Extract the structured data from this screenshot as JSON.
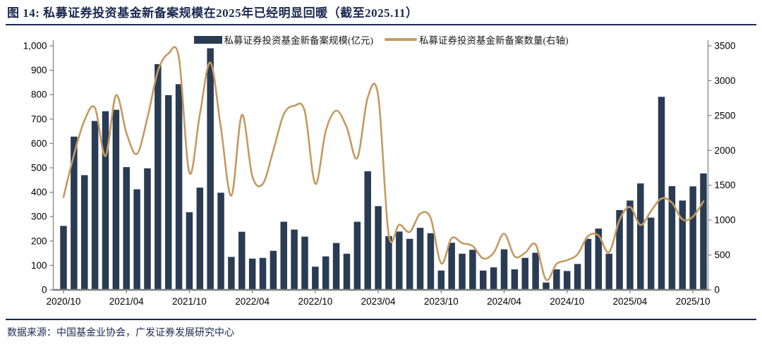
{
  "title": "图  14:  私募证券投资基金新备案规模在2025年已经明显回暖（截至2025.11）",
  "source_note": "数据来源：中国基金业协会，广发证券发展研究中心",
  "colors": {
    "bar": "#2a3b54",
    "line": "#c49a61",
    "title_navy": "#1b2a50",
    "axis_gray": "#7f7f7f",
    "tick_text": "#000000"
  },
  "chart_data": {
    "type": "bar",
    "title": "私募证券投资基金新备案规模与数量",
    "categories": [
      "2020/10",
      "2020/11",
      "2020/12",
      "2021/01",
      "2021/02",
      "2021/03",
      "2021/04",
      "2021/05",
      "2021/06",
      "2021/07",
      "2021/08",
      "2021/09",
      "2021/10",
      "2021/11",
      "2021/12",
      "2022/01",
      "2022/02",
      "2022/03",
      "2022/04",
      "2022/05",
      "2022/06",
      "2022/07",
      "2022/08",
      "2022/09",
      "2022/10",
      "2022/11",
      "2022/12",
      "2023/01",
      "2023/02",
      "2023/03",
      "2023/04",
      "2023/05",
      "2023/06",
      "2023/07",
      "2023/08",
      "2023/09",
      "2023/10",
      "2023/11",
      "2023/12",
      "2024/01",
      "2024/02",
      "2024/03",
      "2024/04",
      "2024/05",
      "2024/06",
      "2024/07",
      "2024/08",
      "2024/09",
      "2024/10",
      "2024/11",
      "2024/12",
      "2025/01",
      "2025/02",
      "2025/03",
      "2025/04",
      "2025/05",
      "2025/06",
      "2025/07",
      "2025/08",
      "2025/09",
      "2025/10",
      "2025/11"
    ],
    "series": [
      {
        "name": "私募证券投资基金新备案规模(亿元)",
        "type": "bar",
        "axis": "left",
        "color": "#2a3b54",
        "values": [
          262,
          628,
          470,
          692,
          732,
          738,
          503,
          412,
          498,
          925,
          798,
          843,
          318,
          419,
          990,
          398,
          135,
          238,
          128,
          131,
          160,
          279,
          247,
          218,
          95,
          137,
          192,
          148,
          279,
          486,
          343,
          220,
          239,
          209,
          254,
          232,
          79,
          193,
          148,
          164,
          79,
          92,
          166,
          84,
          131,
          152,
          30,
          84,
          77,
          106,
          209,
          251,
          148,
          327,
          366,
          436,
          296,
          791,
          425,
          366,
          424,
          477
        ]
      },
      {
        "name": "私募证券投资基金新备案数量(右轴)",
        "type": "line",
        "axis": "right",
        "color": "#c49a61",
        "values": [
          1330,
          1940,
          2430,
          2610,
          1920,
          2790,
          2250,
          1950,
          2470,
          3140,
          3390,
          3330,
          1680,
          2520,
          3260,
          2330,
          1350,
          2510,
          1630,
          1520,
          2000,
          2520,
          2640,
          2560,
          1520,
          2280,
          2570,
          2330,
          1890,
          2760,
          2780,
          790,
          935,
          830,
          1090,
          1030,
          380,
          740,
          670,
          630,
          450,
          530,
          805,
          480,
          530,
          650,
          145,
          370,
          425,
          510,
          770,
          780,
          540,
          1000,
          1190,
          930,
          1130,
          1310,
          1250,
          1010,
          1050,
          1270
        ]
      }
    ],
    "left_axis": {
      "min": 0,
      "max": 1000,
      "step": 100,
      "tick_labels": [
        "0",
        "100",
        "200",
        "300",
        "400",
        "500",
        "600",
        "700",
        "800",
        "900",
        "1,000"
      ]
    },
    "right_axis": {
      "min": 0,
      "max": 3500,
      "step": 500,
      "tick_labels": [
        "0",
        "500",
        "1000",
        "1500",
        "2000",
        "2500",
        "3000",
        "3500"
      ]
    },
    "x_tick_labels": [
      "2020/10",
      "2021/04",
      "2021/10",
      "2022/04",
      "2022/10",
      "2023/04",
      "2023/10",
      "2024/04",
      "2024/10",
      "2025/04",
      "2025/10"
    ],
    "x_tick_every": 6,
    "grid": false,
    "legend_position": "top"
  }
}
